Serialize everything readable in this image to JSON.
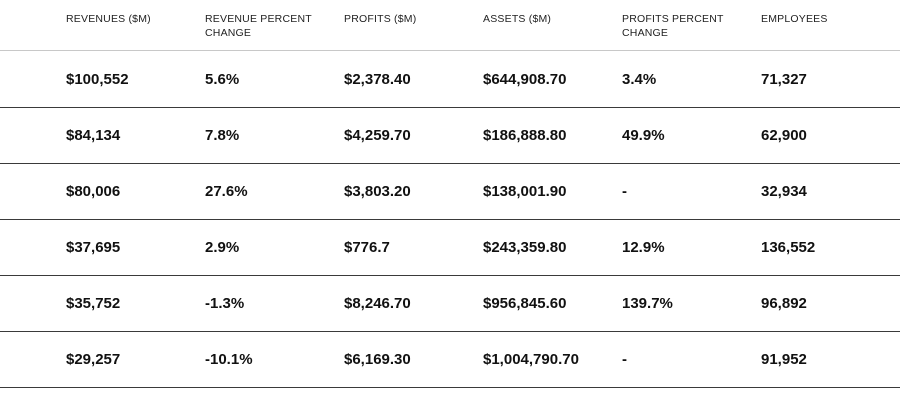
{
  "table": {
    "headers": [
      "REVENUES ($M)",
      "REVENUE PERCENT CHANGE",
      "PROFITS ($M)",
      "ASSETS ($M)",
      "PROFITS PERCENT CHANGE",
      "EMPLOYEES"
    ],
    "rows": [
      [
        "$100,552",
        "5.6%",
        "$2,378.40",
        "$644,908.70",
        "3.4%",
        "71,327"
      ],
      [
        "$84,134",
        "7.8%",
        "$4,259.70",
        "$186,888.80",
        "49.9%",
        "62,900"
      ],
      [
        "$80,006",
        "27.6%",
        "$3,803.20",
        "$138,001.90",
        "-",
        "32,934"
      ],
      [
        "$37,695",
        "2.9%",
        "$776.7",
        "$243,359.80",
        "12.9%",
        "136,552"
      ],
      [
        "$35,752",
        "-1.3%",
        "$8,246.70",
        "$956,845.60",
        "139.7%",
        "96,892"
      ],
      [
        "$29,257",
        "-10.1%",
        "$6,169.30",
        "$1,004,790.70",
        "-",
        "91,952"
      ]
    ]
  }
}
